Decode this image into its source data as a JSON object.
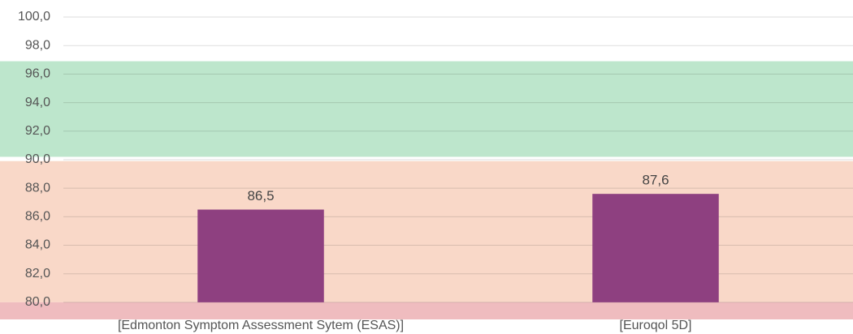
{
  "chart_data": {
    "type": "bar",
    "categories": [
      "[Edmonton Symptom Assessment Sytem (ESAS)]",
      "[Euroqol 5D]"
    ],
    "values": [
      86.5,
      87.6
    ],
    "value_labels": [
      "86,5",
      "87,6"
    ],
    "color": "#8e4080",
    "ylim": [
      78.8,
      100
    ],
    "yticks": [
      {
        "value": 80,
        "label": "80,0"
      },
      {
        "value": 82,
        "label": "82,0"
      },
      {
        "value": 84,
        "label": "84,0"
      },
      {
        "value": 86,
        "label": "86,0"
      },
      {
        "value": 88,
        "label": "88,0"
      },
      {
        "value": 90,
        "label": "90,0"
      },
      {
        "value": 92,
        "label": "92,0"
      },
      {
        "value": 94,
        "label": "94,0"
      },
      {
        "value": 96,
        "label": "96,0"
      },
      {
        "value": 98,
        "label": "98,0"
      },
      {
        "value": 100,
        "label": "100,0"
      }
    ],
    "grid": true,
    "bands": [
      {
        "from": 90.2,
        "to": 96.9,
        "color": "#bde6cc"
      },
      {
        "from": 80,
        "to": 89.9,
        "color": "#f9d8c8"
      },
      {
        "from": 78.8,
        "to": 80,
        "color": "#efbcbf"
      }
    ]
  }
}
